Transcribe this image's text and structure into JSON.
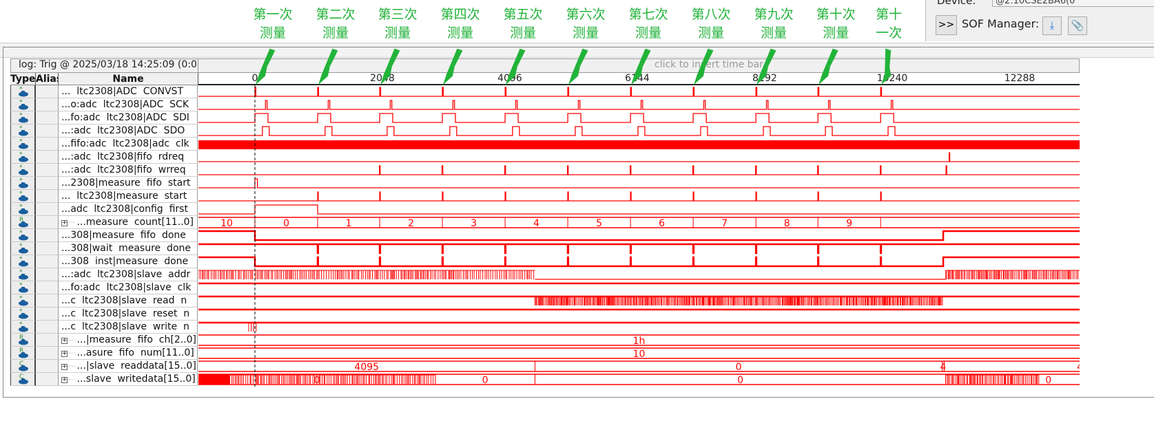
{
  "toolbar": {
    "device_label": "Device:",
    "device_value": "@2:10CSE2BA6(0",
    "expand_label": ">>",
    "sof_manager_label": "SOF Manager:",
    "program_icon": "program-device-icon",
    "attach_icon": "paperclip-icon"
  },
  "log": {
    "text": "log: Trig @ 2025/03/18 14:25:09 (0:0",
    "insert_hint": "click to insert time bar"
  },
  "columns": {
    "type": "Type",
    "alias": "Alias",
    "name": "Name"
  },
  "ruler": {
    "ticks": [
      0,
      2048,
      4096,
      6144,
      8192,
      10240,
      12288
    ]
  },
  "annotations": [
    {
      "line1": "第一次",
      "line2": "测量",
      "at": 0
    },
    {
      "line1": "第二次",
      "line2": "测量",
      "at": 1008
    },
    {
      "line1": "第三次",
      "line2": "测量",
      "at": 2005
    },
    {
      "line1": "第四次",
      "line2": "测量",
      "at": 3012
    },
    {
      "line1": "第五次",
      "line2": "测量",
      "at": 4020
    },
    {
      "line1": "第六次",
      "line2": "测量",
      "at": 5027
    },
    {
      "line1": "第七次",
      "line2": "测量",
      "at": 6035
    },
    {
      "line1": "第八次",
      "line2": "测量",
      "at": 7042
    },
    {
      "line1": "第九次",
      "line2": "测量",
      "at": 8050
    },
    {
      "line1": "第十次",
      "line2": "测量",
      "at": 9047
    },
    {
      "line1": "第十",
      "line2": "一次",
      "at": 10054
    }
  ],
  "colors": {
    "wave": "#ff0000",
    "annotation": "#22b33a",
    "icon": "#1a5fa0"
  },
  "measure_starts": [
    0,
    1008,
    2005,
    3012,
    4020,
    5027,
    6035,
    7042,
    8050,
    9047,
    10054
  ],
  "measure_end": 11060,
  "signals": [
    {
      "name": "...  ltc2308|ADC  CONVST",
      "type": "bit",
      "expand": false
    },
    {
      "name": "...o:adc  ltc2308|ADC  SCK",
      "type": "bit",
      "expand": false
    },
    {
      "name": "...fo:adc  ltc2308|ADC  SDI",
      "type": "bit",
      "expand": false
    },
    {
      "name": "...:adc  ltc2308|ADC  SDO",
      "type": "bit",
      "expand": false
    },
    {
      "name": "...fifo:adc  ltc2308|adc  clk",
      "type": "bit",
      "expand": false
    },
    {
      "name": "...:adc  ltc2308|fifo  rdreq",
      "type": "bit",
      "expand": false
    },
    {
      "name": "...:adc  ltc2308|fifo  wrreq",
      "type": "bit",
      "expand": false
    },
    {
      "name": "...2308|measure  fifo  start",
      "type": "bit",
      "expand": false
    },
    {
      "name": "...  ltc2308|measure  start",
      "type": "bit",
      "expand": false
    },
    {
      "name": "...adc  ltc2308|config  first",
      "type": "bit",
      "expand": false
    },
    {
      "name": "...measure  count[11..0]",
      "type": "bus",
      "expand": true,
      "values": [
        "10",
        "0",
        "1",
        "2",
        "3",
        "4",
        "5",
        "6",
        "7",
        "8",
        "9",
        "10"
      ]
    },
    {
      "name": "...308|measure  fifo  done",
      "type": "bit",
      "expand": false
    },
    {
      "name": "...308|wait  measure  done",
      "type": "bit",
      "expand": false
    },
    {
      "name": "...308  inst|measure  done",
      "type": "bit",
      "expand": false
    },
    {
      "name": "...:adc  ltc2308|slave  addr",
      "type": "bit",
      "expand": false
    },
    {
      "name": "...fo:adc  ltc2308|slave  clk",
      "type": "bit",
      "expand": false
    },
    {
      "name": "...c  ltc2308|slave  read  n",
      "type": "bit",
      "expand": false
    },
    {
      "name": "...c  ltc2308|slave  reset  n",
      "type": "bit",
      "expand": false
    },
    {
      "name": "...c  ltc2308|slave  write  n",
      "type": "bit",
      "expand": false
    },
    {
      "name": "...|measure  fifo  ch[2..0]",
      "type": "bus",
      "expand": true,
      "values": [
        "1h"
      ]
    },
    {
      "name": "...asure  fifo  num[11..0]",
      "type": "bus",
      "expand": true,
      "values": [
        "10"
      ]
    },
    {
      "name": "...|slave  readdata[15..0]",
      "type": "bus",
      "expand": true,
      "values": [
        "4095",
        "0",
        "4"
      ]
    },
    {
      "name": "...slave  writedata[15..0]",
      "type": "bus",
      "expand": true,
      "values": [
        "0",
        "0",
        "0"
      ]
    }
  ]
}
